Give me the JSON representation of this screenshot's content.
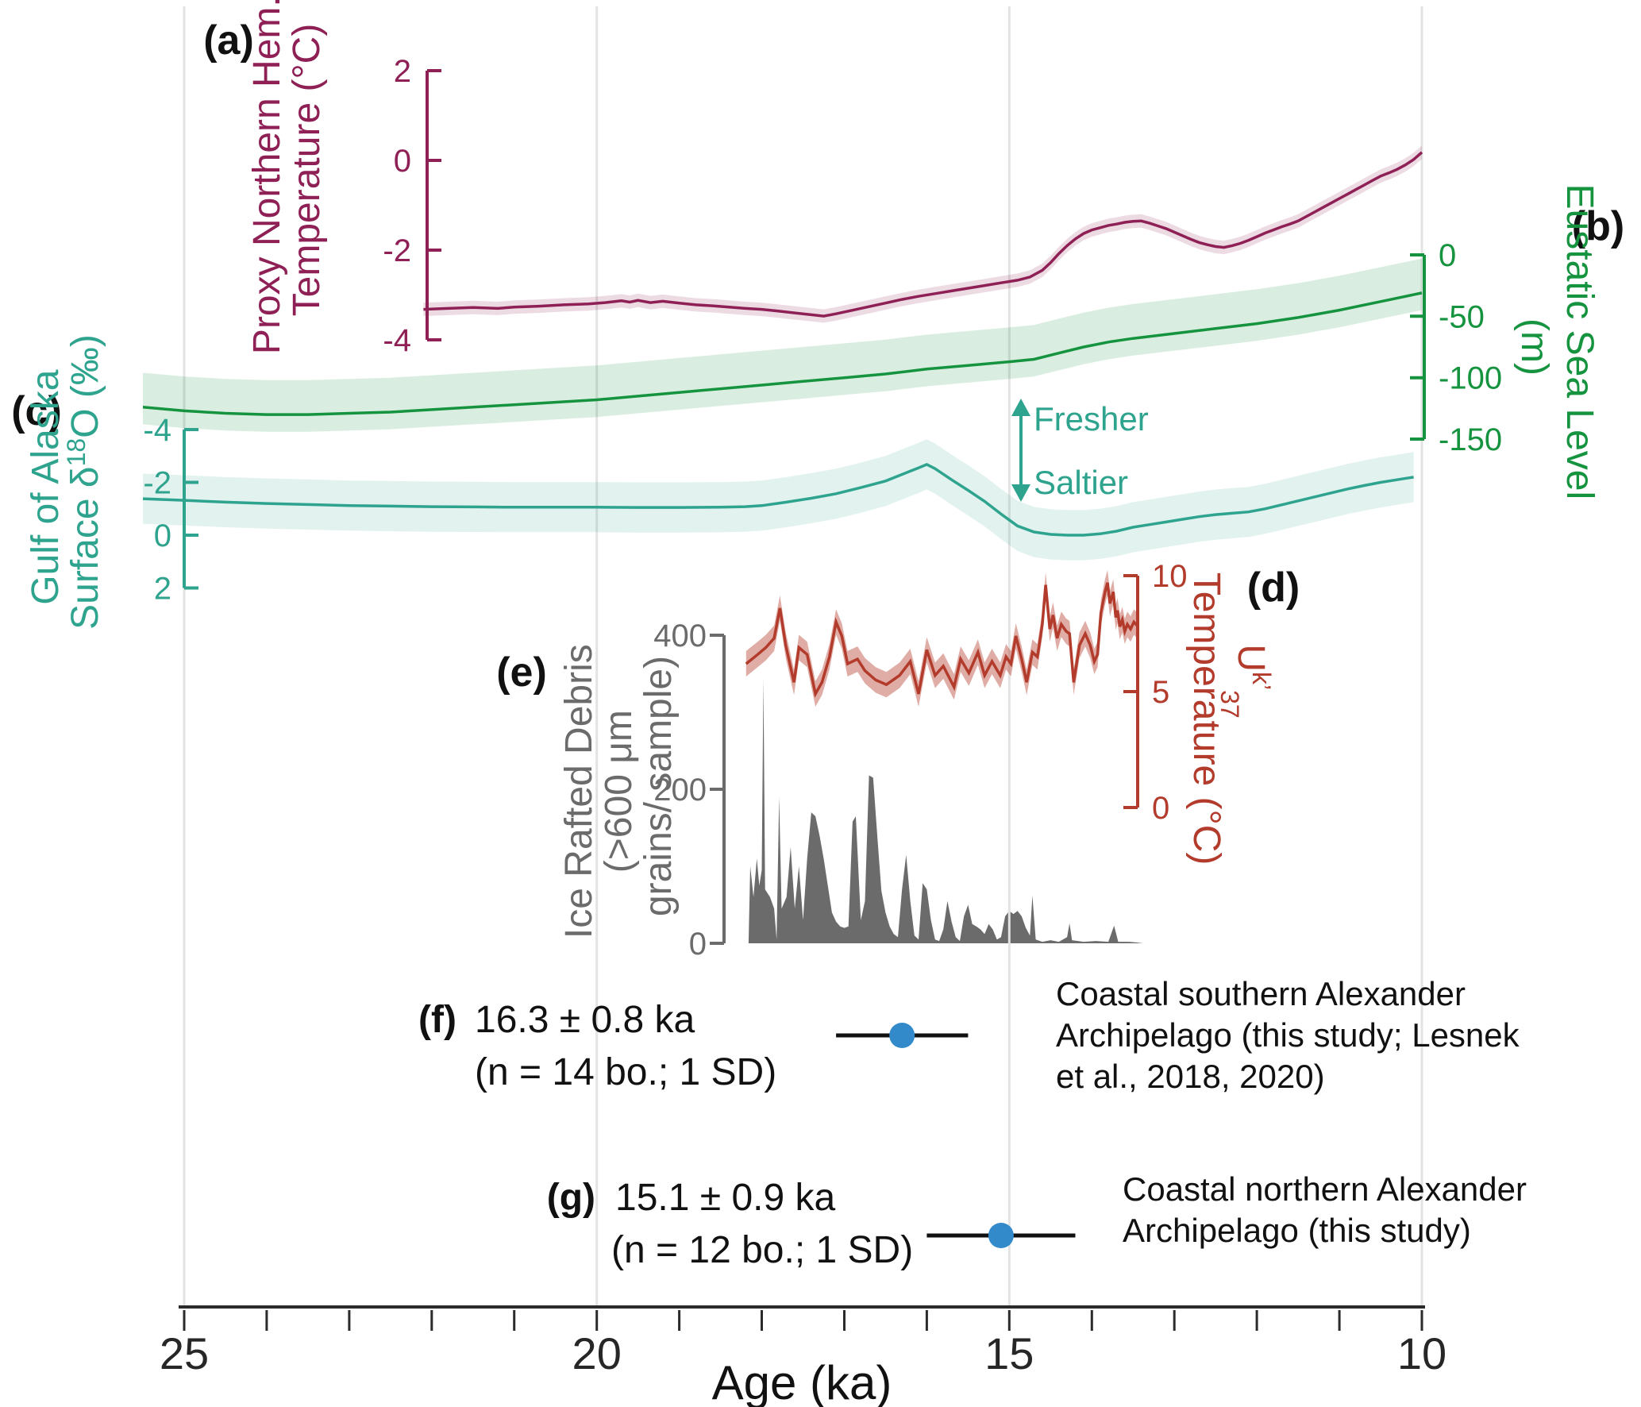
{
  "figure": {
    "xlabel": "Age (ka)",
    "x_ticks": [
      25,
      20,
      15,
      10
    ],
    "x_minor_ticks": [
      25,
      24,
      23,
      22,
      21,
      20,
      19,
      18,
      17,
      16,
      15,
      14,
      13,
      12,
      11,
      10
    ],
    "x_range_ka": [
      25,
      10
    ],
    "grid_ages_ka": [
      25,
      20,
      15,
      10
    ],
    "colors": {
      "proxy_temp": "#8E2056",
      "sea_level": "#15933F",
      "d18o": "#2EA38E",
      "uk37": "#B23B2C",
      "ird": "#6B6B6B",
      "age_dot": "#338ACB",
      "gridline": "#E3E3E3",
      "x_axis": "#2B2B2B"
    }
  },
  "labels": {
    "panel_a": "(a)",
    "panel_b": "(b)",
    "panel_c": "(c)",
    "panel_d": "(d)",
    "panel_e": "(e)",
    "panel_f": "(f)",
    "panel_g": "(g)",
    "title_a_line1": "Proxy Northern Hem.",
    "title_a_line2": "Temperature (°C)",
    "title_b_line1": "Eustatic Sea Level",
    "title_b_line2": "(m)",
    "title_c_line1": "Gulf of Alaska",
    "title_c_line2_pre": "Surface δ",
    "title_c_sup": "18",
    "title_c_post": "O (‰)",
    "title_d_u": "U",
    "title_d_sup": "k’",
    "title_d_sub": "37",
    "title_d_line2": "Temperature (°C)",
    "title_e_line1": "Ice Rafted Debris",
    "title_e_line2": "(>600 μm",
    "title_e_line3": "grains/ sample)",
    "fresher": "Fresher",
    "saltier": "Saltier",
    "xlabel": "Age (ka)",
    "f_line1": "16.3 ±  0.8 ka",
    "f_line2": "(n = 14 bo.; 1 SD)",
    "f_desc1": "Coastal southern Alexander",
    "f_desc2": "Archipelago (this study; Lesnek",
    "f_desc3": "et al., 2018, 2020)",
    "g_line1": "15.1 ±  0.9 ka",
    "g_line2": "(n = 12 bo.; 1 SD)",
    "g_desc1": "Coastal northern Alexander",
    "g_desc2": "Archipelago (this study)"
  },
  "chart_data": [
    {
      "id": "a",
      "type": "line",
      "name": "Proxy Northern Hemisphere Temperature",
      "units": "°C",
      "color": "#8E2056",
      "band_half_width": 0.15,
      "axis": {
        "side": "left",
        "ticks": [
          2,
          0,
          -2,
          -4
        ],
        "range": [
          -4,
          2
        ]
      },
      "x": [
        22.1,
        21.8,
        21.5,
        21.2,
        21.0,
        20.7,
        20.4,
        20.1,
        19.9,
        19.7,
        19.6,
        19.5,
        19.35,
        19.2,
        19.0,
        18.8,
        18.6,
        18.4,
        18.2,
        18.0,
        17.8,
        17.6,
        17.4,
        17.25,
        17.1,
        16.9,
        16.7,
        16.5,
        16.3,
        16.1,
        15.9,
        15.7,
        15.5,
        15.3,
        15.1,
        14.9,
        14.75,
        14.6,
        14.5,
        14.4,
        14.3,
        14.2,
        14.1,
        14.0,
        13.9,
        13.8,
        13.7,
        13.6,
        13.5,
        13.4,
        13.3,
        13.2,
        13.1,
        13.0,
        12.9,
        12.8,
        12.7,
        12.6,
        12.5,
        12.4,
        12.3,
        12.2,
        12.1,
        12.0,
        11.9,
        11.8,
        11.7,
        11.6,
        11.5,
        11.4,
        11.3,
        11.2,
        11.1,
        11.0,
        10.9,
        10.8,
        10.7,
        10.6,
        10.5,
        10.4,
        10.3,
        10.2,
        10.1,
        10.0
      ],
      "y": [
        -3.32,
        -3.3,
        -3.28,
        -3.3,
        -3.27,
        -3.25,
        -3.22,
        -3.2,
        -3.17,
        -3.13,
        -3.16,
        -3.12,
        -3.17,
        -3.14,
        -3.18,
        -3.22,
        -3.24,
        -3.27,
        -3.3,
        -3.32,
        -3.36,
        -3.4,
        -3.44,
        -3.47,
        -3.42,
        -3.34,
        -3.26,
        -3.18,
        -3.1,
        -3.03,
        -2.97,
        -2.91,
        -2.85,
        -2.79,
        -2.73,
        -2.67,
        -2.6,
        -2.45,
        -2.28,
        -2.08,
        -1.9,
        -1.75,
        -1.63,
        -1.55,
        -1.5,
        -1.45,
        -1.42,
        -1.38,
        -1.36,
        -1.35,
        -1.4,
        -1.46,
        -1.52,
        -1.6,
        -1.68,
        -1.76,
        -1.83,
        -1.88,
        -1.92,
        -1.94,
        -1.9,
        -1.85,
        -1.78,
        -1.7,
        -1.62,
        -1.55,
        -1.48,
        -1.42,
        -1.35,
        -1.25,
        -1.15,
        -1.05,
        -0.95,
        -0.85,
        -0.75,
        -0.65,
        -0.55,
        -0.45,
        -0.35,
        -0.28,
        -0.2,
        -0.1,
        0.02,
        0.18
      ]
    },
    {
      "id": "b",
      "type": "line",
      "name": "Eustatic Sea Level",
      "units": "m",
      "color": "#15933F",
      "band_upper": 28,
      "band_lower": 14,
      "axis": {
        "side": "right",
        "ticks": [
          0,
          -50,
          -100,
          -150
        ],
        "range": [
          -150,
          0
        ]
      },
      "x": [
        25.5,
        25,
        24.5,
        24,
        23.5,
        23,
        22.5,
        22,
        21.5,
        21,
        20.5,
        20,
        19.5,
        19,
        18.5,
        18,
        17.5,
        17,
        16.5,
        16,
        15.5,
        15,
        14.7,
        14.4,
        14.1,
        13.8,
        13.5,
        13,
        12.5,
        12,
        11.5,
        11,
        10.5,
        10
      ],
      "y": [
        -124,
        -127,
        -129,
        -130,
        -130,
        -129,
        -128,
        -126,
        -124,
        -122,
        -120,
        -118,
        -115,
        -112,
        -109,
        -106,
        -103,
        -100,
        -97,
        -93,
        -90,
        -87,
        -85,
        -80,
        -75,
        -71,
        -68,
        -64,
        -60,
        -56,
        -51,
        -45,
        -38,
        -31
      ]
    },
    {
      "id": "c",
      "type": "line",
      "name": "Gulf of Alaska Surface d18O",
      "units": "‰",
      "color": "#2EA38E",
      "band_half_width": 0.95,
      "axis": {
        "side": "left",
        "ticks": [
          -4,
          -2,
          0,
          2
        ],
        "range": [
          -4,
          2
        ],
        "inverted": true
      },
      "x": [
        25.5,
        25,
        24.5,
        24,
        23.5,
        23,
        22.5,
        22,
        21.5,
        21,
        20.5,
        20,
        19.5,
        19,
        18.5,
        18.2,
        18,
        17.7,
        17.4,
        17.1,
        16.8,
        16.5,
        16.3,
        16.1,
        16.0,
        15.9,
        15.7,
        15.5,
        15.3,
        15.1,
        14.9,
        14.7,
        14.5,
        14.3,
        14.1,
        13.9,
        13.7,
        13.5,
        13.3,
        13.1,
        12.9,
        12.7,
        12.5,
        12.3,
        12.1,
        11.9,
        11.7,
        11.5,
        11.3,
        11.1,
        10.9,
        10.7,
        10.5,
        10.3,
        10.1
      ],
      "y": [
        -1.38,
        -1.32,
        -1.25,
        -1.2,
        -1.16,
        -1.12,
        -1.1,
        -1.08,
        -1.07,
        -1.06,
        -1.06,
        -1.06,
        -1.05,
        -1.05,
        -1.06,
        -1.08,
        -1.12,
        -1.25,
        -1.4,
        -1.57,
        -1.8,
        -2.05,
        -2.3,
        -2.55,
        -2.68,
        -2.52,
        -2.1,
        -1.7,
        -1.28,
        -0.8,
        -0.35,
        -0.12,
        -0.03,
        0.0,
        0.0,
        -0.05,
        -0.15,
        -0.3,
        -0.4,
        -0.5,
        -0.6,
        -0.7,
        -0.78,
        -0.83,
        -0.88,
        -1.0,
        -1.15,
        -1.3,
        -1.45,
        -1.6,
        -1.75,
        -1.88,
        -2.0,
        -2.1,
        -2.2
      ]
    },
    {
      "id": "d",
      "type": "line",
      "name": "UK'37 Temperature",
      "units": "°C",
      "color": "#B23B2C",
      "band_half_width": 0.55,
      "axis": {
        "side": "right",
        "ticks": [
          10,
          5,
          0
        ],
        "range": [
          0,
          10
        ]
      },
      "x": [
        18.19,
        18.05,
        17.95,
        17.85,
        17.78,
        17.71,
        17.61,
        17.55,
        17.45,
        17.35,
        17.27,
        17.18,
        17.1,
        17.03,
        16.96,
        16.84,
        16.75,
        16.62,
        16.49,
        16.33,
        16.2,
        16.1,
        16.0,
        15.9,
        15.8,
        15.67,
        15.59,
        15.49,
        15.38,
        15.3,
        15.21,
        15.11,
        15.04,
        14.98,
        14.92,
        14.85,
        14.79,
        14.72,
        14.66,
        14.6,
        14.56,
        14.51,
        14.47,
        14.42,
        14.37,
        14.31,
        14.27,
        14.22,
        14.15,
        14.08,
        14.02,
        13.97,
        13.93,
        13.89,
        13.84,
        13.81,
        13.78,
        13.74,
        13.71,
        13.69,
        13.66,
        13.63,
        13.6,
        13.57,
        13.53,
        13.49,
        13.44
      ],
      "y": [
        6.2,
        6.6,
        6.9,
        7.3,
        8.6,
        7.0,
        5.4,
        6.9,
        6.6,
        4.9,
        5.4,
        6.5,
        8.0,
        7.4,
        6.2,
        6.4,
        5.9,
        5.5,
        5.3,
        5.7,
        6.3,
        4.9,
        6.8,
        5.7,
        6.1,
        5.2,
        6.4,
        5.8,
        6.7,
        5.7,
        6.3,
        5.7,
        6.5,
        6.2,
        7.4,
        6.4,
        5.4,
        6.7,
        6.5,
        7.9,
        9.6,
        7.7,
        8.3,
        7.3,
        7.9,
        7.6,
        7.5,
        5.4,
        7.0,
        7.5,
        7.0,
        6.3,
        6.6,
        8.4,
        9.3,
        9.7,
        8.8,
        9.3,
        8.2,
        8.5,
        7.8,
        8.1,
        7.6,
        7.9,
        7.7,
        8.0,
        7.8
      ]
    },
    {
      "id": "e",
      "type": "area",
      "name": "Ice Rafted Debris (>600 um grains/sample)",
      "units": "grains/sample",
      "color": "#6B6B6B",
      "axis": {
        "side": "left",
        "ticks": [
          400,
          200,
          0
        ],
        "range": [
          0,
          400
        ]
      },
      "x": [
        18.16,
        18.14,
        18.1,
        18.06,
        18.03,
        18.0,
        17.98,
        17.96,
        17.9,
        17.85,
        17.82,
        17.79,
        17.76,
        17.7,
        17.65,
        17.6,
        17.55,
        17.5,
        17.45,
        17.4,
        17.35,
        17.3,
        17.25,
        17.2,
        17.15,
        17.1,
        17.05,
        17.0,
        16.95,
        16.9,
        16.86,
        16.8,
        16.75,
        16.7,
        16.65,
        16.6,
        16.55,
        16.5,
        16.45,
        16.4,
        16.35,
        16.3,
        16.25,
        16.2,
        16.15,
        16.1,
        16.05,
        16.0,
        15.95,
        15.9,
        15.85,
        15.8,
        15.75,
        15.7,
        15.65,
        15.6,
        15.55,
        15.5,
        15.45,
        15.4,
        15.35,
        15.3,
        15.25,
        15.2,
        15.15,
        15.1,
        15.05,
        15.0,
        14.95,
        14.9,
        14.85,
        14.8,
        14.75,
        14.72,
        14.68,
        14.6,
        14.5,
        14.4,
        14.3,
        14.27,
        14.24,
        14.1,
        13.95,
        13.8,
        13.73,
        13.68,
        13.55,
        13.45,
        13.38
      ],
      "y": [
        0,
        100,
        60,
        110,
        75,
        95,
        343,
        70,
        60,
        45,
        5,
        190,
        45,
        60,
        125,
        45,
        100,
        30,
        110,
        170,
        165,
        140,
        110,
        75,
        40,
        28,
        22,
        20,
        22,
        158,
        165,
        30,
        55,
        218,
        215,
        140,
        68,
        40,
        22,
        12,
        8,
        70,
        115,
        55,
        10,
        5,
        78,
        70,
        30,
        5,
        3,
        18,
        55,
        28,
        8,
        3,
        35,
        50,
        25,
        22,
        18,
        12,
        25,
        18,
        5,
        8,
        35,
        42,
        38,
        42,
        35,
        20,
        10,
        62,
        5,
        2,
        4,
        2,
        8,
        26,
        4,
        2,
        3,
        2,
        23,
        2,
        2,
        1,
        0
      ]
    },
    {
      "id": "f",
      "type": "point_with_error",
      "name": "Coastal southern Alexander Archipelago deglaciation age",
      "age_ka": 16.3,
      "sd_ka": 0.8,
      "n_boulders": 14,
      "color": "#338ACB",
      "text": "16.3 ± 0.8 ka (n = 14 bo.; 1 SD)",
      "site": "Coastal southern Alexander Archipelago (this study; Lesnek et al., 2018, 2020)"
    },
    {
      "id": "g",
      "type": "point_with_error",
      "name": "Coastal northern Alexander Archipelago deglaciation age",
      "age_ka": 15.1,
      "sd_ka": 0.9,
      "n_boulders": 12,
      "color": "#338ACB",
      "text": "15.1 ± 0.9 ka (n = 12 bo.; 1 SD)",
      "site": "Coastal northern Alexander Archipelago (this study)"
    }
  ]
}
